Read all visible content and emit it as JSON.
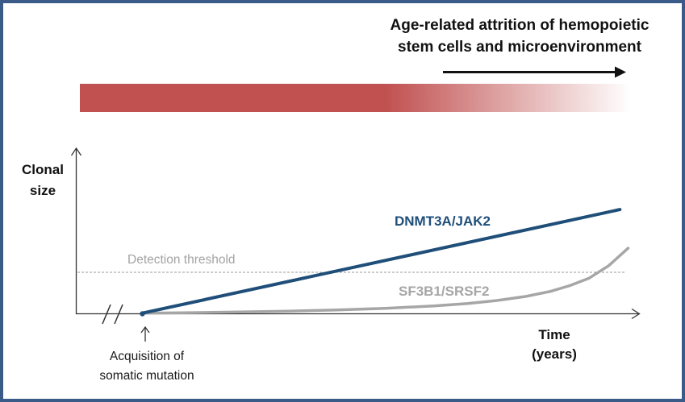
{
  "frame": {
    "border_color": "#3a5a87",
    "background_color": "#ffffff"
  },
  "header": {
    "title": "Age-related attrition of hemopoietic\nstem cells and microenvironment",
    "arrow_icon": "right-arrow",
    "gradient_bar": {
      "color_start": "#c15151",
      "color_end": "#ffffff",
      "direction": "left-to-right"
    }
  },
  "labels": {
    "y_axis": "Clonal\nsize",
    "x_axis": "Time\n(years)",
    "annotation": "Acquisition of\nsomatic mutation",
    "annotation_pointer_icon": "up-arrow"
  },
  "chart_data": {
    "type": "line",
    "title": "Age-related attrition of hemopoietic stem cells and microenvironment",
    "xlabel": "Time (years)",
    "ylabel": "Clonal size",
    "axis_ticks": "none (schematic, no numeric scale)",
    "x_axis_break_before_origin": true,
    "x_range_normalized": [
      0,
      1
    ],
    "y_range_normalized": [
      0,
      1
    ],
    "grid": false,
    "threshold": {
      "label": "Detection threshold",
      "style": "dashed",
      "color": "#999999",
      "value": 0.25
    },
    "series": [
      {
        "name": "DNMT3A/JAK2",
        "color": "#1f4e79",
        "shape": "linear",
        "points": [
          [
            0,
            0.004
          ],
          [
            0.983,
            0.628
          ]
        ]
      },
      {
        "name": "SF3B1/SRSF2",
        "color": "#a6a6a6",
        "shape": "exponential-late-rise",
        "points": [
          [
            0,
            0.004
          ],
          [
            0.1,
            0.007
          ],
          [
            0.2,
            0.011
          ],
          [
            0.3,
            0.016
          ],
          [
            0.4,
            0.023
          ],
          [
            0.5,
            0.033
          ],
          [
            0.6,
            0.047
          ],
          [
            0.67,
            0.062
          ],
          [
            0.73,
            0.08
          ],
          [
            0.79,
            0.105
          ],
          [
            0.84,
            0.135
          ],
          [
            0.88,
            0.17
          ],
          [
            0.92,
            0.215
          ],
          [
            0.96,
            0.29
          ],
          [
            1,
            0.395
          ]
        ]
      }
    ],
    "annotations": [
      {
        "text": "Acquisition of somatic mutation",
        "x": 0,
        "pointer": "up-arrow"
      }
    ],
    "legend_position": "inline-labels"
  },
  "colors": {
    "series_blue": "#1f4e79",
    "series_gray": "#a6a6a6",
    "threshold_text": "#a3a3a3",
    "bar_red": "#c15151",
    "frame_blue": "#3a5a87",
    "axis_black": "#333333"
  }
}
